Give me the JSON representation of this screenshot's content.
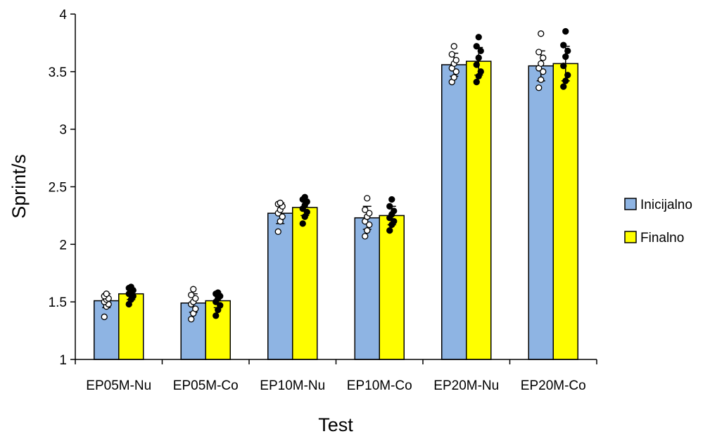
{
  "chart_data": {
    "type": "bar",
    "title": "",
    "xlabel": "Test",
    "ylabel": "Sprint/s",
    "ylim": [
      1,
      4
    ],
    "yticks": [
      "1",
      "1.5",
      "2",
      "2.5",
      "3",
      "3.5",
      "4"
    ],
    "categories": [
      "EP05M-Nu",
      "EP05M-Co",
      "EP10M-Nu",
      "EP10M-Co",
      "EP20M-Nu",
      "EP20M-Co"
    ],
    "legend_position": "right",
    "grid": false,
    "series": [
      {
        "name": "Inicijalno",
        "color": "#8eb4e3",
        "marker": "open-circle",
        "values": [
          1.51,
          1.49,
          2.27,
          2.23,
          3.56,
          3.55
        ],
        "errors": [
          0.06,
          0.08,
          0.09,
          0.1,
          0.1,
          0.13
        ],
        "points": [
          [
            1.37,
            1.46,
            1.48,
            1.5,
            1.52,
            1.53,
            1.55,
            1.57
          ],
          [
            1.35,
            1.4,
            1.44,
            1.48,
            1.5,
            1.53,
            1.56,
            1.61
          ],
          [
            2.11,
            2.2,
            2.24,
            2.27,
            2.3,
            2.33,
            2.35,
            2.36
          ],
          [
            2.07,
            2.12,
            2.17,
            2.2,
            2.24,
            2.27,
            2.3,
            2.4
          ],
          [
            3.41,
            3.45,
            3.5,
            3.53,
            3.57,
            3.6,
            3.65,
            3.72
          ],
          [
            3.36,
            3.43,
            3.5,
            3.53,
            3.57,
            3.62,
            3.67,
            3.83
          ]
        ]
      },
      {
        "name": "Finalno",
        "color": "#ffff00",
        "marker": "filled-circle",
        "values": [
          1.57,
          1.51,
          2.32,
          2.25,
          3.59,
          3.57
        ],
        "errors": [
          0.05,
          0.06,
          0.07,
          0.08,
          0.12,
          0.15
        ],
        "points": [
          [
            1.48,
            1.52,
            1.55,
            1.57,
            1.59,
            1.6,
            1.62,
            1.63
          ],
          [
            1.38,
            1.43,
            1.47,
            1.5,
            1.53,
            1.55,
            1.57,
            1.58
          ],
          [
            2.18,
            2.24,
            2.28,
            2.31,
            2.34,
            2.37,
            2.39,
            2.41
          ],
          [
            2.12,
            2.17,
            2.2,
            2.23,
            2.26,
            2.29,
            2.33,
            2.39
          ],
          [
            3.41,
            3.46,
            3.5,
            3.56,
            3.62,
            3.68,
            3.72,
            3.8
          ],
          [
            3.37,
            3.42,
            3.47,
            3.55,
            3.63,
            3.68,
            3.73,
            3.85
          ]
        ]
      }
    ]
  }
}
